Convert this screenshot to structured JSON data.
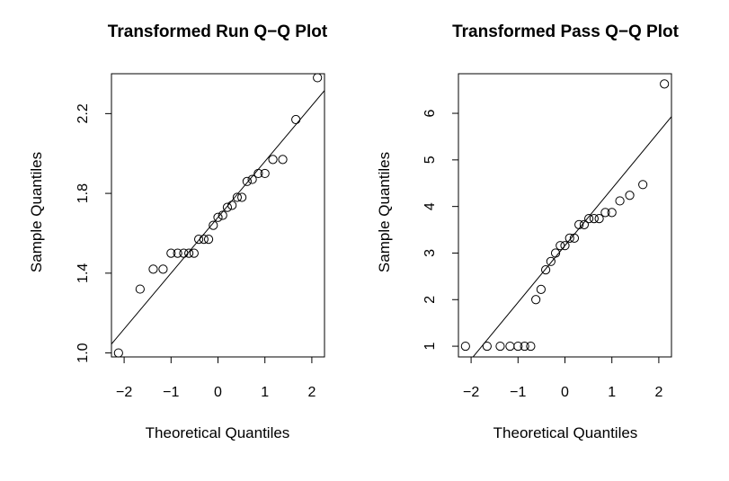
{
  "chart_data": [
    {
      "type": "scatter",
      "title": "Transformed Run Q−Q Plot",
      "xlabel": "Theoretical Quantiles",
      "ylabel": "Sample Quantiles",
      "xlim": [
        -2.27,
        2.27
      ],
      "ylim": [
        0.98,
        2.4
      ],
      "xticks": [
        -2,
        -1,
        0,
        1,
        2
      ],
      "xtick_labels": [
        "−2",
        "−1",
        "0",
        "1",
        "2"
      ],
      "yticks": [
        1.0,
        1.4,
        1.8,
        2.2
      ],
      "ytick_labels": [
        "1.0",
        "1.4",
        "1.8",
        "2.2"
      ],
      "grid": false,
      "reference_line": {
        "intercept": 1.68,
        "slope": 0.28
      },
      "points": [
        {
          "x": -2.12,
          "y": 1.0
        },
        {
          "x": -1.66,
          "y": 1.32
        },
        {
          "x": -1.38,
          "y": 1.42
        },
        {
          "x": -1.17,
          "y": 1.42
        },
        {
          "x": -1.0,
          "y": 1.5
        },
        {
          "x": -0.86,
          "y": 1.5
        },
        {
          "x": -0.73,
          "y": 1.5
        },
        {
          "x": -0.62,
          "y": 1.5
        },
        {
          "x": -0.51,
          "y": 1.5
        },
        {
          "x": -0.41,
          "y": 1.57
        },
        {
          "x": -0.3,
          "y": 1.57
        },
        {
          "x": -0.2,
          "y": 1.57
        },
        {
          "x": -0.1,
          "y": 1.64
        },
        {
          "x": 0.0,
          "y": 1.68
        },
        {
          "x": 0.1,
          "y": 1.69
        },
        {
          "x": 0.2,
          "y": 1.73
        },
        {
          "x": 0.3,
          "y": 1.74
        },
        {
          "x": 0.41,
          "y": 1.78
        },
        {
          "x": 0.51,
          "y": 1.78
        },
        {
          "x": 0.62,
          "y": 1.86
        },
        {
          "x": 0.73,
          "y": 1.87
        },
        {
          "x": 0.86,
          "y": 1.9
        },
        {
          "x": 1.0,
          "y": 1.9
        },
        {
          "x": 1.17,
          "y": 1.97
        },
        {
          "x": 1.38,
          "y": 1.97
        },
        {
          "x": 1.66,
          "y": 2.17
        },
        {
          "x": 2.12,
          "y": 2.38
        }
      ]
    },
    {
      "type": "scatter",
      "title": "Transformed Pass Q−Q Plot",
      "xlabel": "Theoretical Quantiles",
      "ylabel": "Sample Quantiles",
      "xlim": [
        -2.27,
        2.27
      ],
      "ylim": [
        0.77,
        6.85
      ],
      "xticks": [
        -2,
        -1,
        0,
        1,
        2
      ],
      "xtick_labels": [
        "−2",
        "−1",
        "0",
        "1",
        "2"
      ],
      "yticks": [
        1,
        2,
        3,
        4,
        5,
        6
      ],
      "ytick_labels": [
        "1",
        "2",
        "3",
        "4",
        "5",
        "6"
      ],
      "grid": false,
      "reference_line": {
        "intercept": 3.16,
        "slope": 1.22
      },
      "points": [
        {
          "x": -2.12,
          "y": 1.0
        },
        {
          "x": -1.66,
          "y": 1.0
        },
        {
          "x": -1.38,
          "y": 1.0
        },
        {
          "x": -1.17,
          "y": 1.0
        },
        {
          "x": -1.0,
          "y": 1.0
        },
        {
          "x": -0.86,
          "y": 1.0
        },
        {
          "x": -0.73,
          "y": 1.0
        },
        {
          "x": -0.62,
          "y": 2.0
        },
        {
          "x": -0.51,
          "y": 2.22
        },
        {
          "x": -0.41,
          "y": 2.64
        },
        {
          "x": -0.3,
          "y": 2.82
        },
        {
          "x": -0.2,
          "y": 3.0
        },
        {
          "x": -0.1,
          "y": 3.16
        },
        {
          "x": 0.0,
          "y": 3.16
        },
        {
          "x": 0.1,
          "y": 3.32
        },
        {
          "x": 0.2,
          "y": 3.32
        },
        {
          "x": 0.3,
          "y": 3.61
        },
        {
          "x": 0.41,
          "y": 3.61
        },
        {
          "x": 0.51,
          "y": 3.74
        },
        {
          "x": 0.62,
          "y": 3.74
        },
        {
          "x": 0.73,
          "y": 3.74
        },
        {
          "x": 0.86,
          "y": 3.87
        },
        {
          "x": 1.0,
          "y": 3.87
        },
        {
          "x": 1.17,
          "y": 4.12
        },
        {
          "x": 1.38,
          "y": 4.24
        },
        {
          "x": 1.66,
          "y": 4.47
        },
        {
          "x": 2.12,
          "y": 6.63
        }
      ]
    }
  ]
}
